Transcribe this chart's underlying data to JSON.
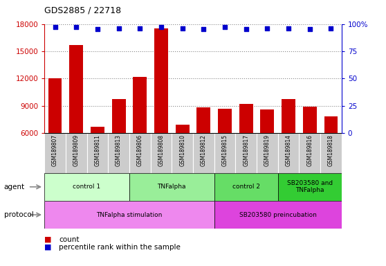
{
  "title": "GDS2885 / 22718",
  "samples": [
    "GSM189807",
    "GSM189809",
    "GSM189811",
    "GSM189813",
    "GSM189806",
    "GSM189808",
    "GSM189810",
    "GSM189812",
    "GSM189815",
    "GSM189817",
    "GSM189819",
    "GSM189814",
    "GSM189816",
    "GSM189818"
  ],
  "bar_values": [
    12000,
    15700,
    6700,
    9700,
    12200,
    17500,
    6900,
    8800,
    8700,
    9200,
    8600,
    9700,
    8900,
    7800
  ],
  "percentile_values": [
    97,
    97,
    95,
    96,
    96,
    97,
    96,
    95,
    97,
    95,
    96,
    96,
    95,
    96
  ],
  "bar_color": "#cc0000",
  "percentile_color": "#0000cc",
  "ylim_left": [
    6000,
    18000
  ],
  "ylim_right": [
    0,
    100
  ],
  "yticks_left": [
    6000,
    9000,
    12000,
    15000,
    18000
  ],
  "yticks_right": [
    0,
    25,
    50,
    75,
    100
  ],
  "agent_groups": [
    {
      "label": "control 1",
      "start": 0,
      "end": 4,
      "color": "#ccffcc"
    },
    {
      "label": "TNFalpha",
      "start": 4,
      "end": 8,
      "color": "#99ee99"
    },
    {
      "label": "control 2",
      "start": 8,
      "end": 11,
      "color": "#66dd66"
    },
    {
      "label": "SB203580 and\nTNFalpha",
      "start": 11,
      "end": 14,
      "color": "#33cc33"
    }
  ],
  "protocol_groups": [
    {
      "label": "TNFalpha stimulation",
      "start": 0,
      "end": 8,
      "color": "#ee88ee"
    },
    {
      "label": "SB203580 preincubation",
      "start": 8,
      "end": 14,
      "color": "#dd44dd"
    }
  ],
  "agent_label": "agent",
  "protocol_label": "protocol",
  "legend_count_label": "count",
  "legend_percentile_label": "percentile rank within the sample",
  "background_color": "#ffffff",
  "grid_color": "#888888",
  "tick_label_color_left": "#cc0000",
  "tick_label_color_right": "#0000cc",
  "sample_bg_color": "#cccccc"
}
